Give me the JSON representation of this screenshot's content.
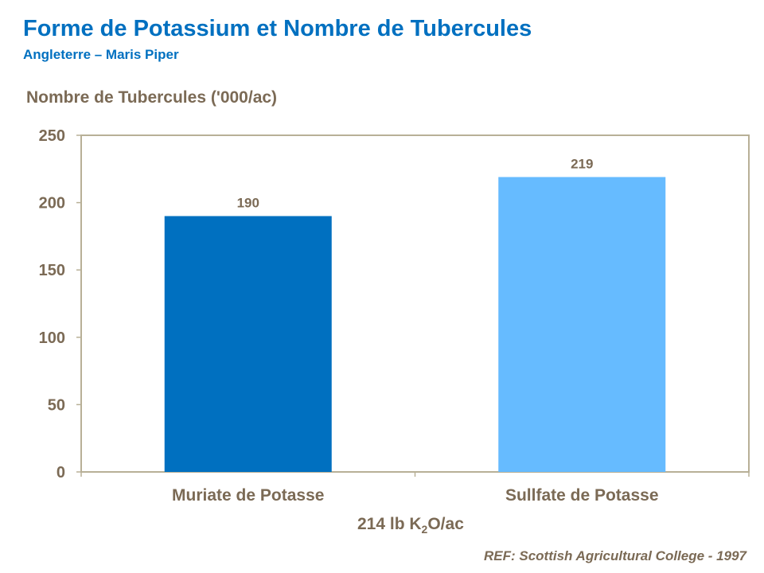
{
  "chart_data": {
    "type": "bar",
    "title": "Forme de Potassium et Nombre de Tubercules",
    "subtitle": "Angleterre – Maris Piper",
    "ylabel": "Nombre de Tubercules ('000/ac)",
    "xlabel": {
      "before": "214 lb K",
      "sub": "2",
      "after": "O/ac"
    },
    "categories": [
      "Muriate de Potasse",
      "Sullfate de Potasse"
    ],
    "values": [
      190,
      219
    ],
    "colors": [
      "#0070c0",
      "#66bbff"
    ],
    "ylim": [
      0,
      250
    ],
    "yticks": [
      0,
      50,
      100,
      150,
      200,
      250
    ],
    "grid": false,
    "reference": "REF: Scottish Agricultural College - 1997"
  }
}
